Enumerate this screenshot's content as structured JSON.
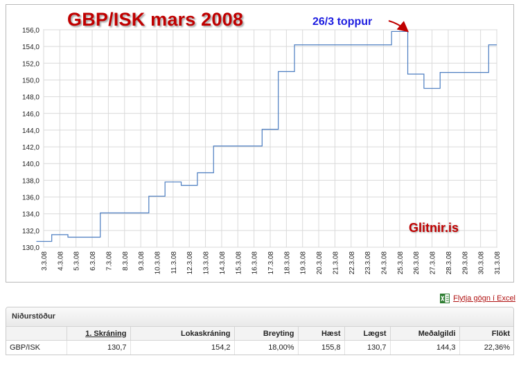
{
  "chart_data": {
    "type": "line",
    "step": true,
    "title": "GBP/ISK mars 2008",
    "annotation": "26/3 toppur",
    "watermark": "Glitnir.is",
    "ylim": [
      130,
      156
    ],
    "y_ticks": [
      "130,0",
      "132,0",
      "134,0",
      "136,0",
      "138,0",
      "140,0",
      "142,0",
      "144,0",
      "146,0",
      "148,0",
      "150,0",
      "152,0",
      "154,0",
      "156,0"
    ],
    "categories": [
      "3.3.08",
      "4.3.08",
      "5.3.08",
      "6.3.08",
      "7.3.08",
      "8.3.08",
      "9.3.08",
      "10.3.08",
      "11.3.08",
      "12.3.08",
      "13.3.08",
      "14.3.08",
      "15.3.08",
      "16.3.08",
      "17.3.08",
      "18.3.08",
      "19.3.08",
      "20.3.08",
      "21.3.08",
      "22.3.08",
      "23.3.08",
      "24.3.08",
      "25.3.08",
      "26.3.08",
      "27.3.08",
      "28.3.08",
      "29.3.08",
      "30.3.08",
      "31.3.08"
    ],
    "series": [
      {
        "values": [
          130.7,
          131.5,
          131.2,
          131.2,
          134.1,
          134.1,
          134.1,
          136.1,
          137.8,
          137.4,
          138.9,
          142.1,
          142.1,
          142.1,
          144.1,
          151.0,
          154.2,
          154.2,
          154.2,
          154.2,
          154.2,
          154.2,
          155.8,
          150.7,
          149.0,
          150.9,
          150.9,
          150.9,
          154.2
        ],
        "color": "#4a7cc0"
      }
    ],
    "grid": true,
    "legend": "none"
  },
  "colors": {
    "title": "#c00000",
    "annotation": "#1c1ce0",
    "line": "#4a7cc0",
    "arrow": "#c00000"
  },
  "export": {
    "label": "Flytja gögn í Excel",
    "icon": "excel-icon"
  },
  "results": {
    "title": "Niðurstöður",
    "columns": [
      "",
      "1. Skráning",
      "Lokaskráning",
      "Breyting",
      "Hæst",
      "Lægst",
      "Meðalgildi",
      "Flökt"
    ],
    "rows": [
      [
        "GBP/ISK",
        "130,7",
        "154,2",
        "18,00%",
        "155,8",
        "130,7",
        "144,3",
        "22,36%"
      ]
    ]
  }
}
